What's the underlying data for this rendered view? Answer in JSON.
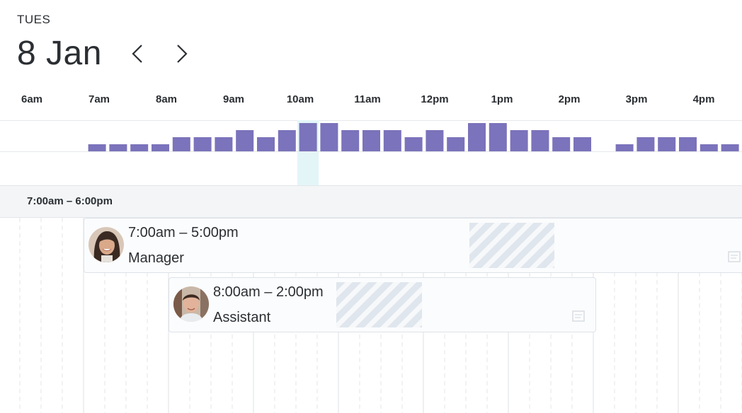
{
  "header": {
    "day": "TUES",
    "date": "8 Jan",
    "prev_icon": "chevron-left-icon",
    "next_icon": "chevron-right-icon"
  },
  "timeline": {
    "hours": [
      "6am",
      "7am",
      "8am",
      "9am",
      "10am",
      "11am",
      "12pm",
      "1pm",
      "2pm",
      "3pm",
      "4pm"
    ]
  },
  "histogram": {
    "bar_color": "#7b73bb",
    "highlight_color": "#e4f5f8",
    "highlight_slot": 14,
    "levels": [
      0,
      0,
      0,
      0,
      1,
      1,
      1,
      1,
      2,
      2,
      2,
      3,
      2,
      3,
      4,
      4,
      3,
      3,
      3,
      2,
      3,
      2,
      4,
      4,
      3,
      3,
      2,
      2,
      0,
      1,
      2,
      2,
      2,
      1,
      1
    ]
  },
  "range": {
    "label": "7:00am – 6:00pm"
  },
  "shifts": [
    {
      "time": "7:00am – 5:00pm",
      "role": "Manager",
      "avatar": "avatar-woman"
    },
    {
      "time": "8:00am – 2:00pm",
      "role": "Assistant",
      "avatar": "avatar-man"
    }
  ]
}
